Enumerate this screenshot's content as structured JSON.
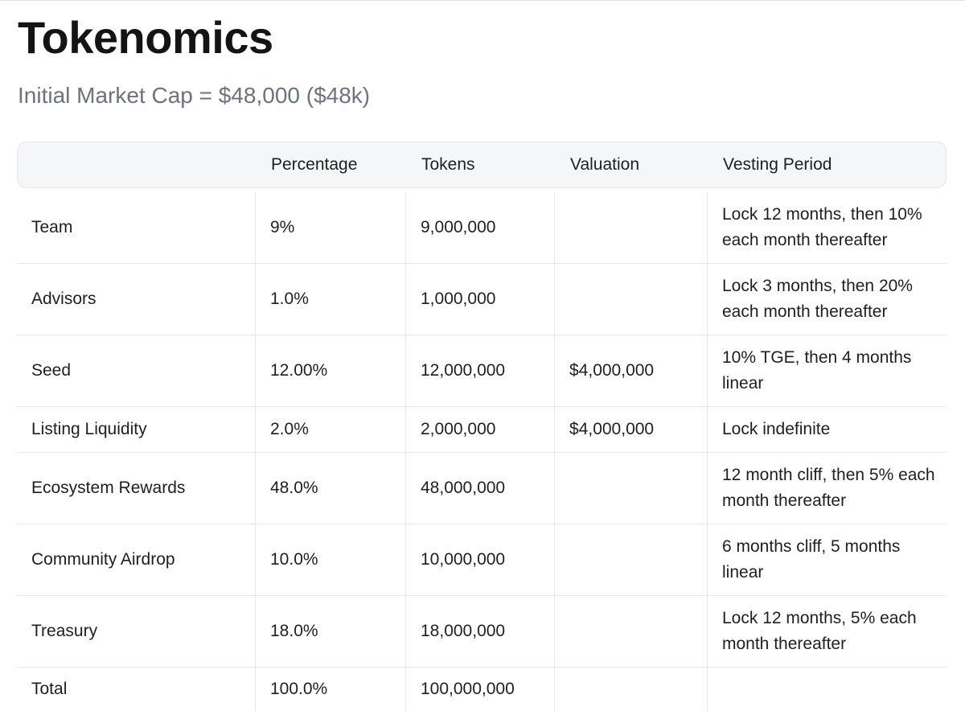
{
  "title": "Tokenomics",
  "subtitle": "Initial Market Cap = $48,000 ($48k)",
  "table": {
    "headers": [
      "",
      "Percentage",
      "Tokens",
      "Valuation",
      "Vesting Period"
    ],
    "rows": [
      [
        "Team",
        "9%",
        "9,000,000",
        "",
        "Lock 12 months, then 10% each month thereafter"
      ],
      [
        "Advisors",
        "1.0%",
        "1,000,000",
        "",
        "Lock 3 months, then 20% each month thereafter"
      ],
      [
        "Seed",
        "12.00%",
        "12,000,000",
        "$4,000,000",
        "10% TGE, then 4 months linear"
      ],
      [
        "Listing Liquidity",
        "2.0%",
        "2,000,000",
        "$4,000,000",
        "Lock indefinite"
      ],
      [
        "Ecosystem Rewards",
        "48.0%",
        "48,000,000",
        "",
        "12 month cliff, then 5% each month thereafter"
      ],
      [
        "Community Airdrop",
        "10.0%",
        "10,000,000",
        "",
        "6 months cliff, 5 months linear"
      ],
      [
        "Treasury",
        "18.0%",
        "18,000,000",
        "",
        "Lock 12 months, 5% each month thereafter"
      ],
      [
        "Total",
        "100.0%",
        "100,000,000",
        "",
        ""
      ]
    ]
  }
}
